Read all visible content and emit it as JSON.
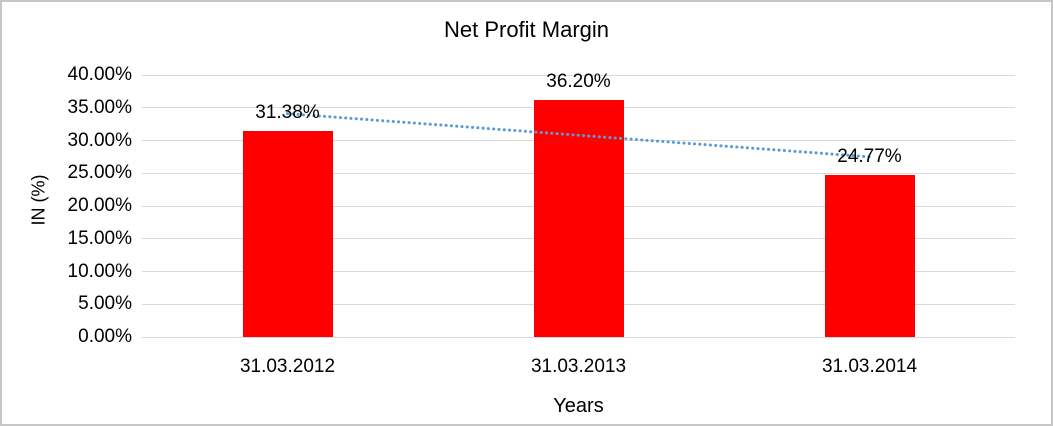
{
  "chart_data": {
    "type": "bar",
    "title": "Net Profit Margin",
    "xlabel": "Years",
    "ylabel": "IN (%)",
    "categories": [
      "31.03.2012",
      "31.03.2013",
      "31.03.2014"
    ],
    "values": [
      31.38,
      36.2,
      24.77
    ],
    "data_labels": [
      "31.38%",
      "36.20%",
      "24.77%"
    ],
    "ylim": [
      0,
      40
    ],
    "ytick_step": 5,
    "ytick_labels": [
      "0.00%",
      "5.00%",
      "10.00%",
      "15.00%",
      "20.00%",
      "25.00%",
      "30.00%",
      "35.00%",
      "40.00%"
    ],
    "grid": true,
    "legend": "none",
    "bar_color": "#ff0000",
    "gridline_color": "#d9d9d9",
    "trendline": {
      "type": "linear",
      "style": "dotted",
      "color": "#5b9bd5",
      "start_value": 34.1,
      "end_value": 27.5
    }
  }
}
